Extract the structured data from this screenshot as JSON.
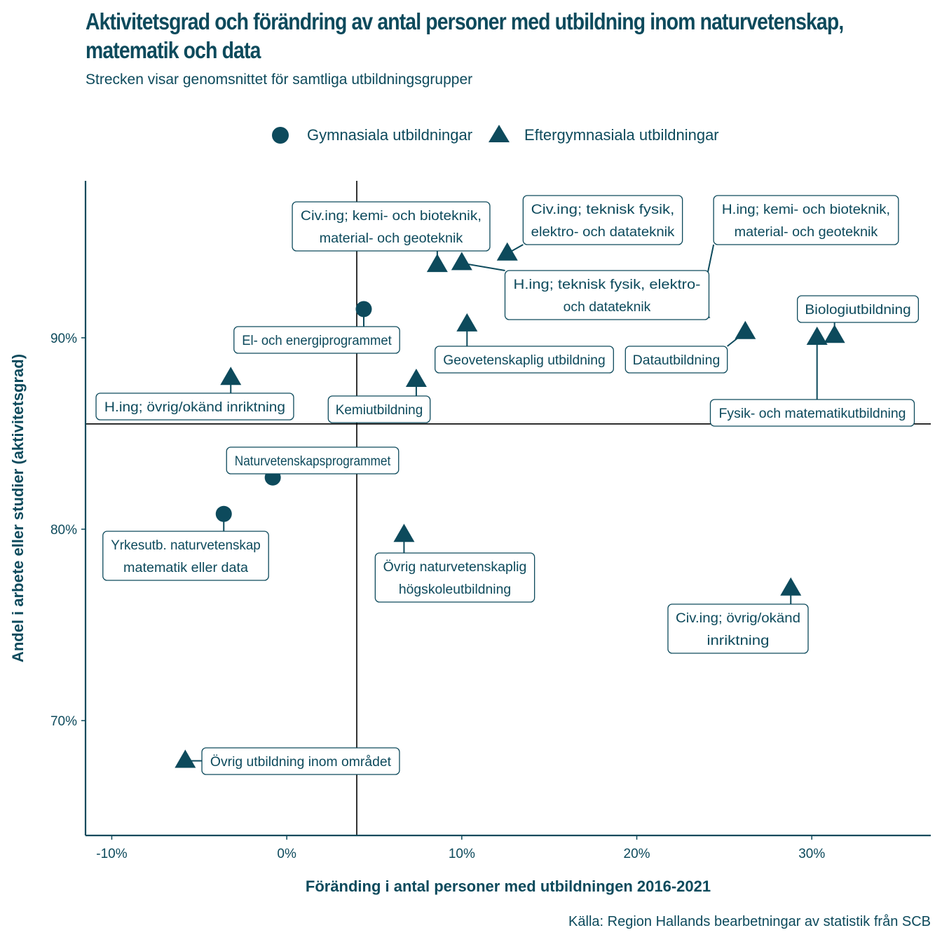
{
  "title": "Aktivitetsgrad och förändring av antal personer med utbildning inom naturvetenskap, matematik och data",
  "subtitle": "Strecken visar genomsnittet för samtliga utbildningsgrupper",
  "caption": "Källa: Region Hallands bearbetningar av statistik från SCB",
  "colors": {
    "primary": "#0d4a5c",
    "mean_line": "#000000",
    "background": "#ffffff"
  },
  "chart_data": {
    "type": "scatter",
    "title": "Aktivitetsgrad och förändring av antal personer med utbildning inom naturvetenskap, matematik och data",
    "subtitle": "Strecken visar genomsnittet för samtliga utbildningsgrupper",
    "xlabel": "Föränding i antal personer med utbildningen 2016-2021",
    "ylabel": "Andel i arbete eller studier (aktivitetsgrad)",
    "xlim": [
      -11.5,
      36.8
    ],
    "ylim": [
      64.0,
      98.2
    ],
    "x_ticks": [
      -10,
      0,
      10,
      20,
      30
    ],
    "x_tick_labels": [
      "-10%",
      "0%",
      "10%",
      "20%",
      "30%"
    ],
    "y_ticks": [
      70,
      80,
      90
    ],
    "y_tick_labels": [
      "70%",
      "80%",
      "90%"
    ],
    "grid": false,
    "legend_position": "top",
    "mean_x": 4.0,
    "mean_y": 85.5,
    "legend": [
      {
        "name": "Gymnasiala utbildningar",
        "shape": "circle"
      },
      {
        "name": "Eftergymnasiala utbildningar",
        "shape": "triangle"
      }
    ],
    "series": [
      {
        "name": "Gymnasiala utbildningar",
        "shape": "circle",
        "points": [
          {
            "label": "El- och energiprogrammet",
            "x": 4.4,
            "y": 91.5
          },
          {
            "label": "Naturvetenskapsprogrammet",
            "x": -0.8,
            "y": 82.7
          },
          {
            "label": "Yrkesutb. naturvetenskap\nmatematik eller data",
            "x": -3.6,
            "y": 80.8
          }
        ]
      },
      {
        "name": "Eftergymnasiala utbildningar",
        "shape": "triangle",
        "points": [
          {
            "label": "Civ.ing; kemi- och bioteknik,\nmaterial- och geoteknik",
            "x": 8.6,
            "y": 93.8
          },
          {
            "label": "H.ing; teknisk fysik, elektro-\noch datateknik",
            "x": 10.0,
            "y": 93.9
          },
          {
            "label": "Civ.ing; teknisk fysik,\nelektro- och datateknik",
            "x": 12.6,
            "y": 94.4
          },
          {
            "label": "H.ing; kemi- och bioteknik,\nmaterial- och geoteknik",
            "x": 23.6,
            "y": 91.4
          },
          {
            "label": "Geovetenskaplig utbildning",
            "x": 10.3,
            "y": 90.7
          },
          {
            "label": "Datautbildning",
            "x": 26.2,
            "y": 90.3
          },
          {
            "label": "Biologiutbildning",
            "x": 31.3,
            "y": 90.1
          },
          {
            "label": "Fysik- och matematikutbildning",
            "x": 30.3,
            "y": 90.0
          },
          {
            "label": "H.ing; övrig/okänd inriktning",
            "x": -3.2,
            "y": 87.9
          },
          {
            "label": "Kemiutbildning",
            "x": 7.4,
            "y": 87.8
          },
          {
            "label": "Övrig naturvetenskaplig\nhögskoleutbildning",
            "x": 6.7,
            "y": 79.7
          },
          {
            "label": "Civ.ing; övrig/okänd\ninriktning",
            "x": 28.8,
            "y": 76.9
          },
          {
            "label": "Övrig utbildning inom området",
            "x": -5.8,
            "y": 67.9
          }
        ]
      }
    ]
  }
}
